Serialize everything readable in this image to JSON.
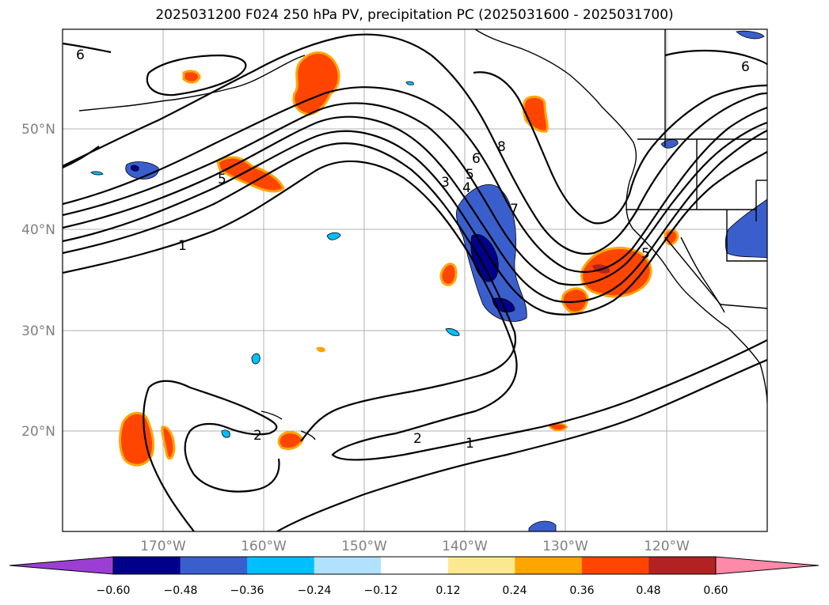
{
  "title": "2025031200 F024 250 hPa PV, precipitation PC (2025031600 - 2025031700)",
  "longitude_labels": [
    "170°W",
    "160°W",
    "150°W",
    "140°W",
    "130°W",
    "120°W"
  ],
  "latitude_labels": [
    "50°N",
    "40°N",
    "30°N",
    "20°N"
  ],
  "contour_labels": [
    "6",
    "6",
    "5",
    "4",
    "3",
    "5",
    "6",
    "7",
    "8",
    "1",
    "2",
    "2",
    "1",
    "5"
  ],
  "colorbar": {
    "tick_labels": [
      "−0.60",
      "−0.48",
      "−0.36",
      "−0.24",
      "−0.12",
      "0.12",
      "0.24",
      "0.36",
      "0.48",
      "0.60"
    ],
    "colors": [
      "#9b3fd4",
      "#00008b",
      "#3a5fcd",
      "#00bfff",
      "#b0e2ff",
      "#ffffff",
      "#fce98f",
      "#ffa500",
      "#ff4500",
      "#b22222",
      "#ff89a9"
    ]
  }
}
